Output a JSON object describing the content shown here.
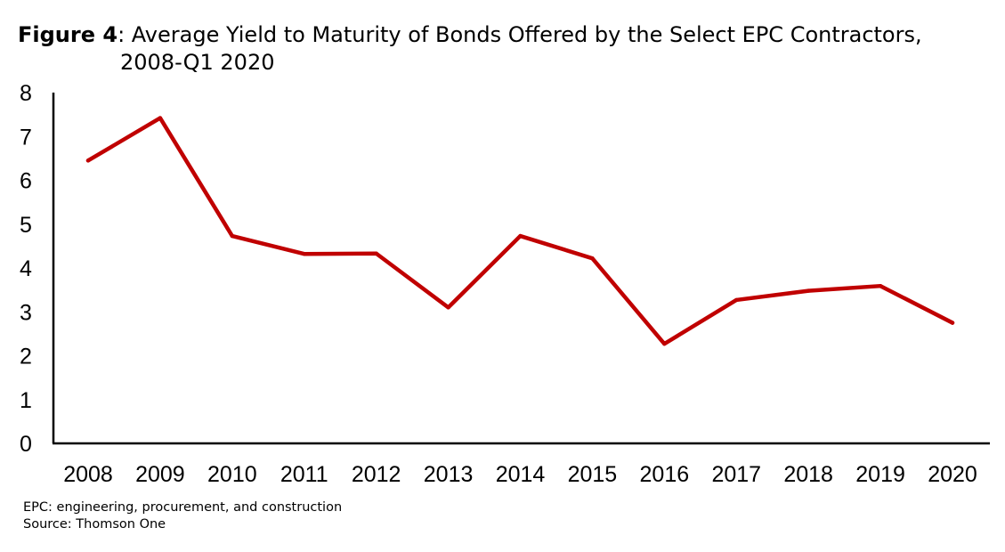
{
  "figure": {
    "label": "Figure 4",
    "title": ": Average Yield to Maturity of Bonds Offered by the Select EPC Contractors,",
    "title_line2": "2008-Q1 2020"
  },
  "footnotes": {
    "definition": "EPC: engineering, procurement, and construction",
    "source": "Source: Thomson One"
  },
  "colors": {
    "line": "#c00000",
    "axis": "#000000"
  },
  "chart_data": {
    "type": "line",
    "title": "Average Yield to Maturity of Bonds Offered by the Select EPC Contractors, 2008-Q1 2020",
    "xlabel": "",
    "ylabel": "",
    "categories": [
      "2008",
      "2009",
      "2010",
      "2011",
      "2012",
      "2013",
      "2014",
      "2015",
      "2016",
      "2017",
      "2018",
      "2019",
      "2020"
    ],
    "series": [
      {
        "values": [
          6.45,
          7.42,
          4.73,
          4.32,
          4.33,
          3.1,
          4.73,
          4.22,
          2.27,
          3.27,
          3.48,
          3.59,
          2.75
        ]
      }
    ],
    "ylim": [
      0,
      8
    ],
    "yticks": [
      0,
      1,
      2,
      3,
      4,
      5,
      6,
      7,
      8
    ],
    "grid": false,
    "legend": "none"
  }
}
